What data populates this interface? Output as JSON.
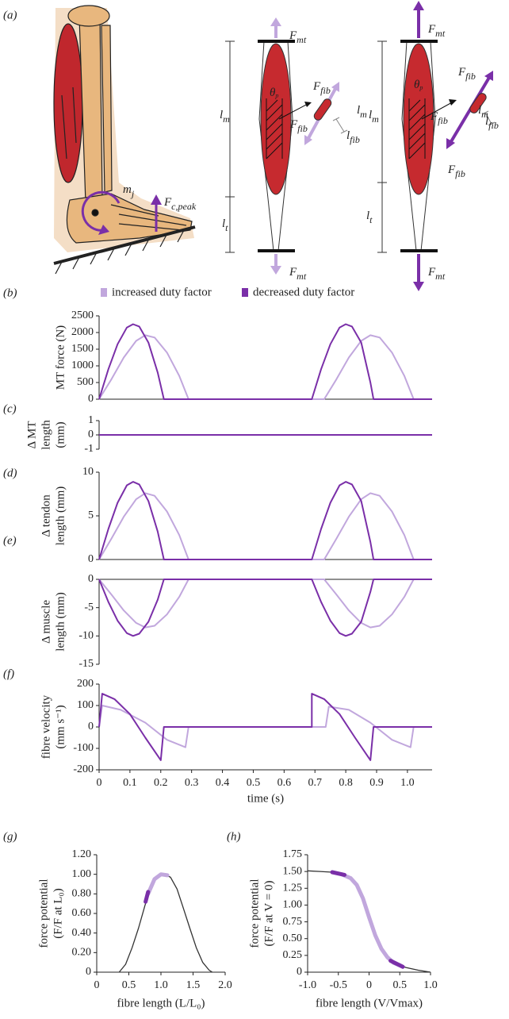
{
  "diagram": {
    "panel": "(a)",
    "F_mt": {
      "main": "F",
      "sub": "mt"
    },
    "F_fib": {
      "main": "F",
      "sub": "fib"
    },
    "l_m": {
      "main": "l",
      "sub": "m"
    },
    "l_t": {
      "main": "l",
      "sub": "t"
    },
    "l_fib": {
      "main": "l",
      "sub": "fib"
    },
    "theta_p": {
      "main": "θ",
      "sub": "p"
    },
    "m_j": {
      "main": "m",
      "sub": "j"
    },
    "F_c_peak": {
      "main": "F",
      "sub": "c,peak"
    }
  },
  "chart_data": [
    {
      "type": "line",
      "panel": "(b)",
      "ylabel": [
        "MT force (N)"
      ],
      "xlim": [
        0,
        1.08
      ],
      "ylim": [
        0,
        2500
      ],
      "yticks": [
        0,
        500,
        1000,
        1500,
        2000,
        2500
      ],
      "legend": "top",
      "series": [
        {
          "name": "increased duty factor",
          "color": "#c1a7dd",
          "x": [
            0,
            0.04,
            0.08,
            0.12,
            0.15,
            0.18,
            0.22,
            0.26,
            0.29,
            0.73,
            0.77,
            0.81,
            0.85,
            0.88,
            0.91,
            0.95,
            0.99,
            1.02,
            1.08
          ],
          "values": [
            0,
            600,
            1250,
            1750,
            1920,
            1850,
            1400,
            700,
            0,
            0,
            600,
            1250,
            1750,
            1920,
            1850,
            1400,
            700,
            0,
            0
          ]
        },
        {
          "name": "decreased duty factor",
          "color": "#7a2fa8",
          "x": [
            0,
            0.03,
            0.06,
            0.09,
            0.11,
            0.13,
            0.16,
            0.19,
            0.21,
            0.69,
            0.72,
            0.75,
            0.78,
            0.8,
            0.82,
            0.85,
            0.88,
            0.89,
            1.08
          ],
          "values": [
            0,
            900,
            1650,
            2150,
            2250,
            2180,
            1700,
            800,
            0,
            0,
            900,
            1650,
            2150,
            2250,
            2180,
            1700,
            500,
            0,
            0
          ]
        }
      ]
    },
    {
      "type": "line",
      "panel": "(c)",
      "ylabel": [
        "Δ MT",
        "length",
        "(mm)"
      ],
      "xlim": [
        0,
        1.08
      ],
      "ylim": [
        -1,
        1
      ],
      "yticks": [
        -1,
        0,
        1
      ],
      "series": [
        {
          "color": "#c1a7dd",
          "x": [
            0,
            1.08
          ],
          "values": [
            0,
            0
          ]
        },
        {
          "color": "#7a2fa8",
          "x": [
            0,
            1.08
          ],
          "values": [
            0,
            0
          ]
        }
      ]
    },
    {
      "type": "line",
      "panel": "(d)",
      "ylabel": [
        "Δ tendon",
        "length (mm)"
      ],
      "xlim": [
        0,
        1.08
      ],
      "ylim": [
        0,
        10
      ],
      "yticks": [
        0,
        5,
        10
      ],
      "series": [
        {
          "color": "#c1a7dd",
          "x": [
            0,
            0.04,
            0.08,
            0.12,
            0.15,
            0.18,
            0.22,
            0.26,
            0.29,
            0.73,
            0.77,
            0.81,
            0.85,
            0.88,
            0.91,
            0.95,
            0.99,
            1.02,
            1.08
          ],
          "values": [
            0,
            2.4,
            4.9,
            6.9,
            7.6,
            7.3,
            5.5,
            2.8,
            0,
            0,
            2.4,
            4.9,
            6.9,
            7.6,
            7.3,
            5.5,
            2.8,
            0,
            0
          ]
        },
        {
          "color": "#7a2fa8",
          "x": [
            0,
            0.03,
            0.06,
            0.09,
            0.11,
            0.13,
            0.16,
            0.19,
            0.21,
            0.69,
            0.72,
            0.75,
            0.78,
            0.8,
            0.82,
            0.85,
            0.88,
            0.89,
            1.08
          ],
          "values": [
            0,
            3.5,
            6.5,
            8.5,
            8.9,
            8.6,
            6.7,
            3.2,
            0,
            0,
            3.5,
            6.5,
            8.5,
            8.9,
            8.6,
            6.7,
            2,
            0,
            0
          ]
        }
      ]
    },
    {
      "type": "line",
      "panel": "(e)",
      "ylabel": [
        "Δ muscle",
        "length (mm)"
      ],
      "xlim": [
        0,
        1.08
      ],
      "ylim": [
        -15,
        0
      ],
      "yticks": [
        -15,
        -10,
        -5,
        0
      ],
      "series": [
        {
          "color": "#c1a7dd",
          "x": [
            0,
            0.04,
            0.08,
            0.12,
            0.15,
            0.18,
            0.22,
            0.26,
            0.29,
            0.73,
            0.77,
            0.81,
            0.85,
            0.88,
            0.91,
            0.95,
            0.99,
            1.02,
            1.08
          ],
          "values": [
            0,
            -2.7,
            -5.5,
            -7.7,
            -8.5,
            -8.2,
            -6.2,
            -3.1,
            0,
            0,
            -2.7,
            -5.5,
            -7.7,
            -8.5,
            -8.2,
            -6.2,
            -3.1,
            0,
            0
          ]
        },
        {
          "color": "#7a2fa8",
          "x": [
            0,
            0.03,
            0.06,
            0.09,
            0.11,
            0.13,
            0.16,
            0.19,
            0.21,
            0.69,
            0.72,
            0.75,
            0.78,
            0.8,
            0.82,
            0.85,
            0.88,
            0.89,
            1.08
          ],
          "values": [
            0,
            -4,
            -7.3,
            -9.5,
            -10,
            -9.6,
            -7.5,
            -3.6,
            0,
            0,
            -4,
            -7.3,
            -9.5,
            -10,
            -9.6,
            -7.5,
            -2.2,
            0,
            0
          ]
        }
      ]
    },
    {
      "type": "line",
      "panel": "(f)",
      "ylabel": [
        "fibre velocity",
        "(mm s⁻¹)"
      ],
      "xlabel": "time (s)",
      "xlim": [
        0,
        1.08
      ],
      "ylim": [
        -200,
        200
      ],
      "yticks": [
        -200,
        -100,
        0,
        100,
        200
      ],
      "xticks": [
        0,
        0.1,
        0.2,
        0.3,
        0.4,
        0.5,
        0.6,
        0.7,
        0.8,
        0.9,
        {
          "value": 1,
          "label": "1.0"
        }
      ],
      "series": [
        {
          "color": "#c1a7dd",
          "x": [
            0,
            0.01,
            0.07,
            0.15,
            0.22,
            0.28,
            0.29,
            0.735,
            0.745,
            0.81,
            0.88,
            0.95,
            1.01,
            1.02,
            1.08
          ],
          "values": [
            0,
            100,
            80,
            20,
            -60,
            -95,
            0,
            0,
            95,
            80,
            20,
            -60,
            -95,
            0,
            0
          ]
        },
        {
          "color": "#7a2fa8",
          "x": [
            0,
            0.01,
            0.05,
            0.1,
            0.15,
            0.2,
            0.21,
            0.69,
            0.69,
            0.73,
            0.78,
            0.83,
            0.88,
            0.89,
            1.08
          ],
          "values": [
            0,
            155,
            130,
            60,
            -50,
            -155,
            0,
            0,
            155,
            130,
            60,
            -50,
            -155,
            0,
            0
          ]
        }
      ]
    },
    {
      "type": "line",
      "panel": "(g)",
      "ylabel": [
        "force potential",
        "(F/F at L₀)"
      ],
      "xlabel": "fibre length (L/L₀)",
      "xlim": [
        0,
        2
      ],
      "ylim": [
        0,
        1.2
      ],
      "xticks": [
        0,
        0.5,
        {
          "value": 1,
          "label": "1.0"
        },
        1.5,
        {
          "value": 2,
          "label": "2.0"
        }
      ],
      "yticks": [
        0,
        {
          "value": 0.2,
          "label": "0.20"
        },
        {
          "value": 0.4,
          "label": "0.40"
        },
        {
          "value": 0.6,
          "label": "0.60"
        },
        {
          "value": 0.8,
          "label": "0.80"
        },
        {
          "value": 1,
          "label": "1.00"
        },
        {
          "value": 1.2,
          "label": "1.20"
        }
      ],
      "series": [
        {
          "color": "#333333",
          "x": [
            0.35,
            0.45,
            0.55,
            0.65,
            0.75,
            0.85,
            0.95,
            1.05,
            1.15,
            1.25,
            1.35,
            1.45,
            1.55,
            1.65,
            1.75,
            1.8
          ],
          "values": [
            0,
            0.08,
            0.25,
            0.45,
            0.68,
            0.88,
            0.98,
            1,
            0.97,
            0.85,
            0.65,
            0.45,
            0.25,
            0.1,
            0.02,
            0
          ]
        },
        {
          "color": "#c1a7dd",
          "x": [
            0.8,
            0.9,
            1,
            1.1
          ],
          "values": [
            0.8,
            0.95,
            1,
            0.99
          ]
        },
        {
          "color": "#7a2fa8",
          "x": [
            0.76,
            0.8
          ],
          "values": [
            0.72,
            0.82
          ]
        }
      ]
    },
    {
      "type": "line",
      "panel": "(h)",
      "ylabel": [
        "force potential",
        "(F/F at V = 0)"
      ],
      "xlabel": "fibre length (V/Vmax)",
      "xlim": [
        -1,
        1
      ],
      "ylim": [
        0,
        1.75
      ],
      "xticks": [
        {
          "value": -1,
          "label": "-1.0"
        },
        -0.5,
        0,
        0.5,
        {
          "value": 1,
          "label": "1.0"
        }
      ],
      "yticks": [
        0,
        0.25,
        {
          "value": 0.5,
          "label": "0.50"
        },
        0.75,
        {
          "value": 1,
          "label": "1.00"
        },
        1.25,
        {
          "value": 1.5,
          "label": "1.50"
        },
        1.75
      ],
      "series": [
        {
          "color": "#333333",
          "x": [
            -1,
            -0.8,
            -0.6,
            -0.4,
            -0.3,
            -0.2,
            -0.1,
            0,
            0.1,
            0.2,
            0.3,
            0.4,
            0.6,
            0.8,
            1
          ],
          "values": [
            1.51,
            1.5,
            1.49,
            1.45,
            1.4,
            1.3,
            1.1,
            0.82,
            0.55,
            0.35,
            0.22,
            0.14,
            0.07,
            0.03,
            0
          ]
        },
        {
          "color": "#c1a7dd",
          "x": [
            -0.45,
            -0.3,
            -0.2,
            -0.1,
            0,
            0.1,
            0.2,
            0.3,
            0.4,
            0.5
          ],
          "values": [
            1.46,
            1.4,
            1.3,
            1.1,
            0.82,
            0.55,
            0.35,
            0.22,
            0.14,
            0.1
          ]
        },
        {
          "color": "#7a2fa8",
          "x": [
            -0.6,
            -0.4,
            null,
            0.35,
            0.55
          ],
          "values": [
            1.49,
            1.45,
            null,
            0.17,
            0.08
          ]
        }
      ]
    }
  ]
}
